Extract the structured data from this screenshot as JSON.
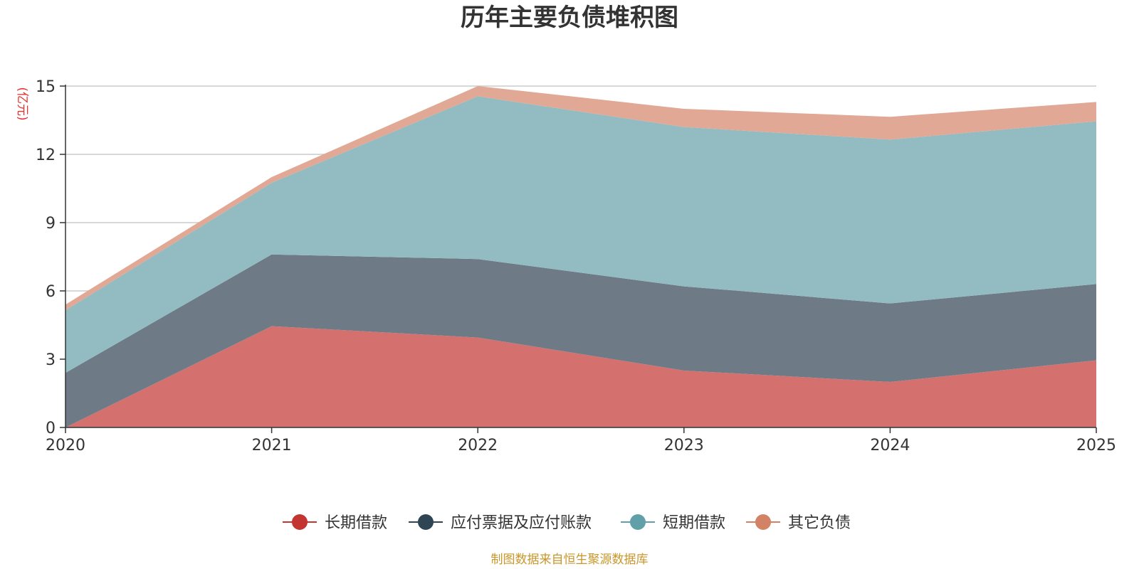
{
  "chart_data": {
    "type": "area",
    "stacked": true,
    "title": "历年主要负债堆积图",
    "unit": "(亿元)",
    "x": [
      "2020",
      "2021",
      "2022",
      "2023",
      "2024",
      "2025"
    ],
    "ylim": [
      0,
      15
    ],
    "yticks": [
      "0",
      "3",
      "6",
      "9",
      "12",
      "15"
    ],
    "grid": true,
    "legend_position": "bottom-center",
    "series": [
      {
        "name": "长期借款",
        "values": [
          0.0,
          4.45,
          3.95,
          2.5,
          2.0,
          2.95
        ],
        "color": "#c23531",
        "fill": "#d4706e"
      },
      {
        "name": "应付票据及应付账款",
        "values": [
          2.4,
          3.15,
          3.45,
          3.7,
          3.45,
          3.35
        ],
        "color": "#2f4554",
        "fill": "#6e7b86"
      },
      {
        "name": "短期借款",
        "values": [
          2.75,
          3.15,
          7.15,
          7.0,
          7.2,
          7.15
        ],
        "color": "#61a0a8",
        "fill": "#93bcc2"
      },
      {
        "name": "其它负债",
        "values": [
          0.25,
          0.25,
          0.45,
          0.8,
          1.0,
          0.85
        ],
        "color": "#d48265",
        "fill": "#e0a895"
      }
    ],
    "source": "制图数据来自恒生聚源数据库"
  }
}
